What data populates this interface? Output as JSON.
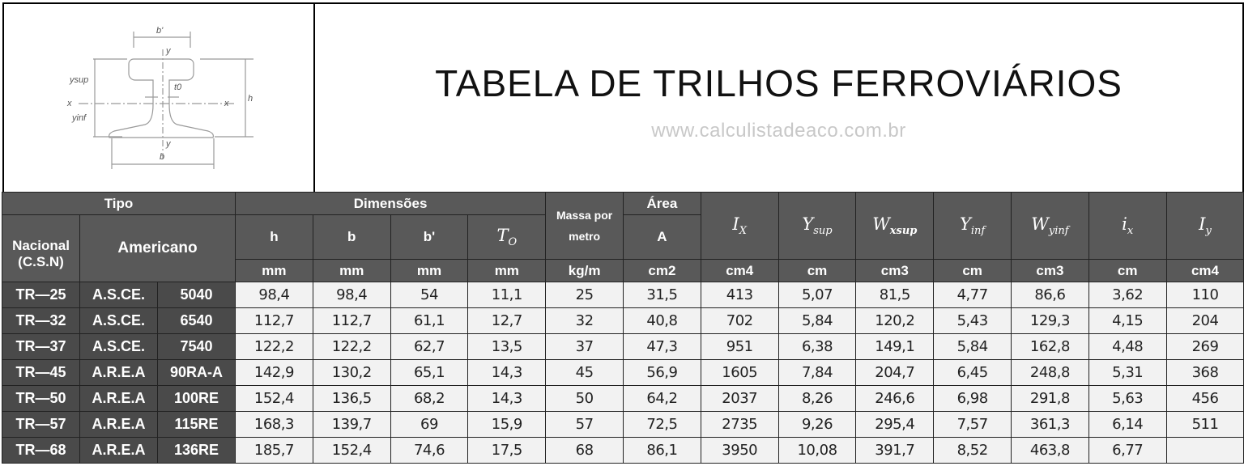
{
  "header": {
    "title": "TABELA DE TRILHOS FERROVIÁRIOS",
    "url": "www.calculistadeaco.com.br"
  },
  "figure": {
    "labels": {
      "b_top": "b'",
      "y_top": "y",
      "y_sup": "ysup",
      "t0": "t0",
      "x_left": "x",
      "x_right": "x",
      "h": "h",
      "y_inf": "yinf",
      "y_bottom": "y",
      "b": "b"
    }
  },
  "table": {
    "groups": {
      "tipo": "Tipo",
      "dimensoes": "Dimensões",
      "massa": "Massa por metro",
      "area": "Área"
    },
    "cols": {
      "nacional": "Nacional (C.S.N)",
      "americano": "Americano",
      "h": "h",
      "b": "b",
      "bp": "b'",
      "t0": "T",
      "t0_sub": "O",
      "A": "A",
      "ix_big": "I",
      "ix_big_sub": "X",
      "ysup": "Y",
      "ysup_sub": "sup",
      "wxsup": "W",
      "wxsup_sub": "xsup",
      "yinf": "Y",
      "yinf_sub": "inf",
      "wyinf": "W",
      "wyinf_sub": "yinf",
      "ix": "i",
      "ix_sub": "x",
      "iy": "I",
      "iy_sub": "y"
    },
    "units": [
      "mm",
      "mm",
      "mm",
      "mm",
      "kg/m",
      "cm2",
      "cm4",
      "cm",
      "cm3",
      "cm",
      "cm3",
      "cm",
      "cm4"
    ],
    "rows": [
      [
        "TR—25",
        "A.S.CE.",
        "5040",
        "98,4",
        "98,4",
        "54",
        "11,1",
        "25",
        "31,5",
        "413",
        "5,07",
        "81,5",
        "4,77",
        "86,6",
        "3,62",
        "110"
      ],
      [
        "TR—32",
        "A.S.CE.",
        "6540",
        "112,7",
        "112,7",
        "61,1",
        "12,7",
        "32",
        "40,8",
        "702",
        "5,84",
        "120,2",
        "5,43",
        "129,3",
        "4,15",
        "204"
      ],
      [
        "TR—37",
        "A.S.CE.",
        "7540",
        "122,2",
        "122,2",
        "62,7",
        "13,5",
        "37",
        "47,3",
        "951",
        "6,38",
        "149,1",
        "5,84",
        "162,8",
        "4,48",
        "269"
      ],
      [
        "TR—45",
        "A.R.E.A",
        "90RA-A",
        "142,9",
        "130,2",
        "65,1",
        "14,3",
        "45",
        "56,9",
        "1605",
        "7,84",
        "204,7",
        "6,45",
        "248,8",
        "5,31",
        "368"
      ],
      [
        "TR—50",
        "A.R.E.A",
        "100RE",
        "152,4",
        "136,5",
        "68,2",
        "14,3",
        "50",
        "64,2",
        "2037",
        "8,26",
        "246,6",
        "6,98",
        "291,8",
        "5,63",
        "456"
      ],
      [
        "TR—57",
        "A.R.E.A",
        "115RE",
        "168,3",
        "139,7",
        "69",
        "15,9",
        "57",
        "72,5",
        "2735",
        "9,26",
        "295,4",
        "7,57",
        "361,3",
        "6,14",
        "511"
      ],
      [
        "TR—68",
        "A.R.E.A",
        "136RE",
        "185,7",
        "152,4",
        "74,6",
        "17,5",
        "68",
        "86,1",
        "3950",
        "10,08",
        "391,7",
        "8,52",
        "463,8",
        "6,77",
        ""
      ]
    ]
  }
}
